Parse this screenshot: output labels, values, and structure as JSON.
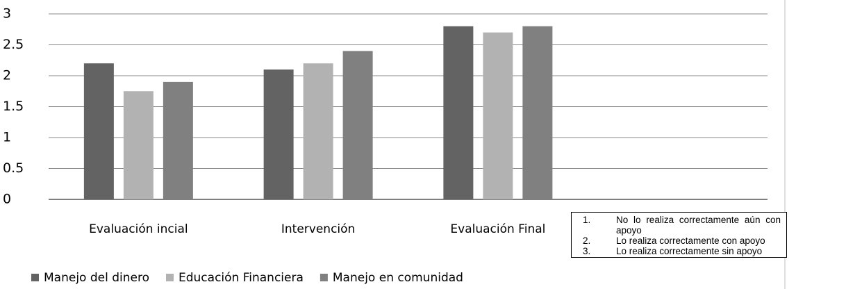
{
  "chart_data": {
    "type": "bar",
    "categories": [
      "Evaluación incial",
      "Intervención",
      "Evaluación Final",
      null
    ],
    "series": [
      {
        "name": "Manejo del dinero",
        "color": "#636363",
        "values": [
          2.2,
          2.1,
          2.8,
          null
        ]
      },
      {
        "name": "Educación Financiera",
        "color": "#b2b2b2",
        "values": [
          1.75,
          2.2,
          2.7,
          null
        ]
      },
      {
        "name": "Manejo en comunidad",
        "color": "#808080",
        "values": [
          1.9,
          2.4,
          2.8,
          null
        ]
      }
    ],
    "ylim": [
      0,
      3
    ],
    "yticks": [
      0,
      0.5,
      1,
      1.5,
      2,
      2.5,
      3
    ],
    "grid": true,
    "legend": "bottom",
    "annotation_list": [
      {
        "number": "1.",
        "text": "No lo realiza correctamente aún con apoyo"
      },
      {
        "number": "2.",
        "text": "Lo realiza correctamente con apoyo"
      },
      {
        "number": "3.",
        "text": "Lo realiza correctamente sin apoyo"
      }
    ]
  }
}
